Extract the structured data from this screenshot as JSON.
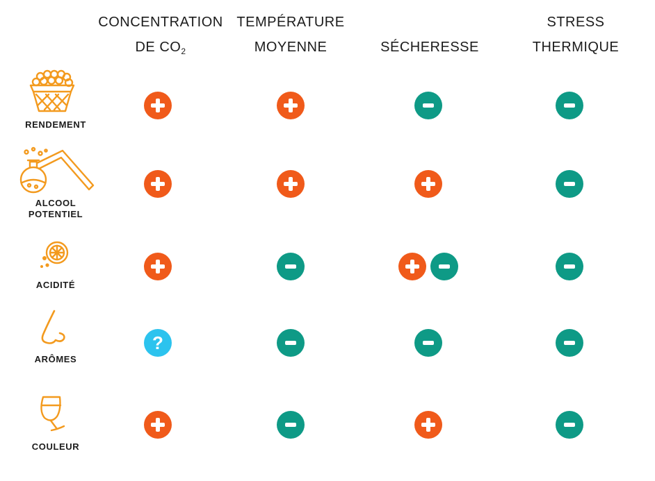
{
  "columns": {
    "co2": {
      "line1": "CONCENTRATION",
      "line2": "DE CO",
      "line2_sub": "2"
    },
    "temperature": {
      "line1": "TEMPÉRATURE",
      "line2": "MOYENNE"
    },
    "drought": {
      "line1": "",
      "line2": "SÉCHERESSE"
    },
    "heat_stress": {
      "line1": "STRESS",
      "line2": "THERMIQUE"
    }
  },
  "rows": [
    {
      "label": [
        "RENDEMENT"
      ],
      "icon": "grape-basket-icon",
      "effects": {
        "co2": [
          "plus"
        ],
        "temperature": [
          "plus"
        ],
        "drought": [
          "minus"
        ],
        "heat_stress": [
          "minus"
        ]
      }
    },
    {
      "label": [
        "ALCOOL",
        "POTENTIEL"
      ],
      "icon": "flask-still-icon",
      "effects": {
        "co2": [
          "plus"
        ],
        "temperature": [
          "plus"
        ],
        "drought": [
          "plus"
        ],
        "heat_stress": [
          "minus"
        ]
      }
    },
    {
      "label": [
        "ACIDITÉ"
      ],
      "icon": "lemon-icon",
      "effects": {
        "co2": [
          "plus"
        ],
        "temperature": [
          "minus"
        ],
        "drought": [
          "plus",
          "minus"
        ],
        "heat_stress": [
          "minus"
        ]
      }
    },
    {
      "label": [
        "ARÔMES"
      ],
      "icon": "nose-icon",
      "effects": {
        "co2": [
          "question"
        ],
        "temperature": [
          "minus"
        ],
        "drought": [
          "minus"
        ],
        "heat_stress": [
          "minus"
        ]
      }
    },
    {
      "label": [
        "COULEUR"
      ],
      "icon": "wine-glass-icon",
      "effects": {
        "co2": [
          "plus"
        ],
        "temperature": [
          "minus"
        ],
        "drought": [
          "plus"
        ],
        "heat_stress": [
          "minus"
        ]
      }
    }
  ],
  "symbols": {
    "question": "?"
  },
  "colors": {
    "increase": "#f05a1a",
    "decrease": "#0e9a86",
    "unknown": "#2cc3ee",
    "icon": "#f39a1e"
  }
}
